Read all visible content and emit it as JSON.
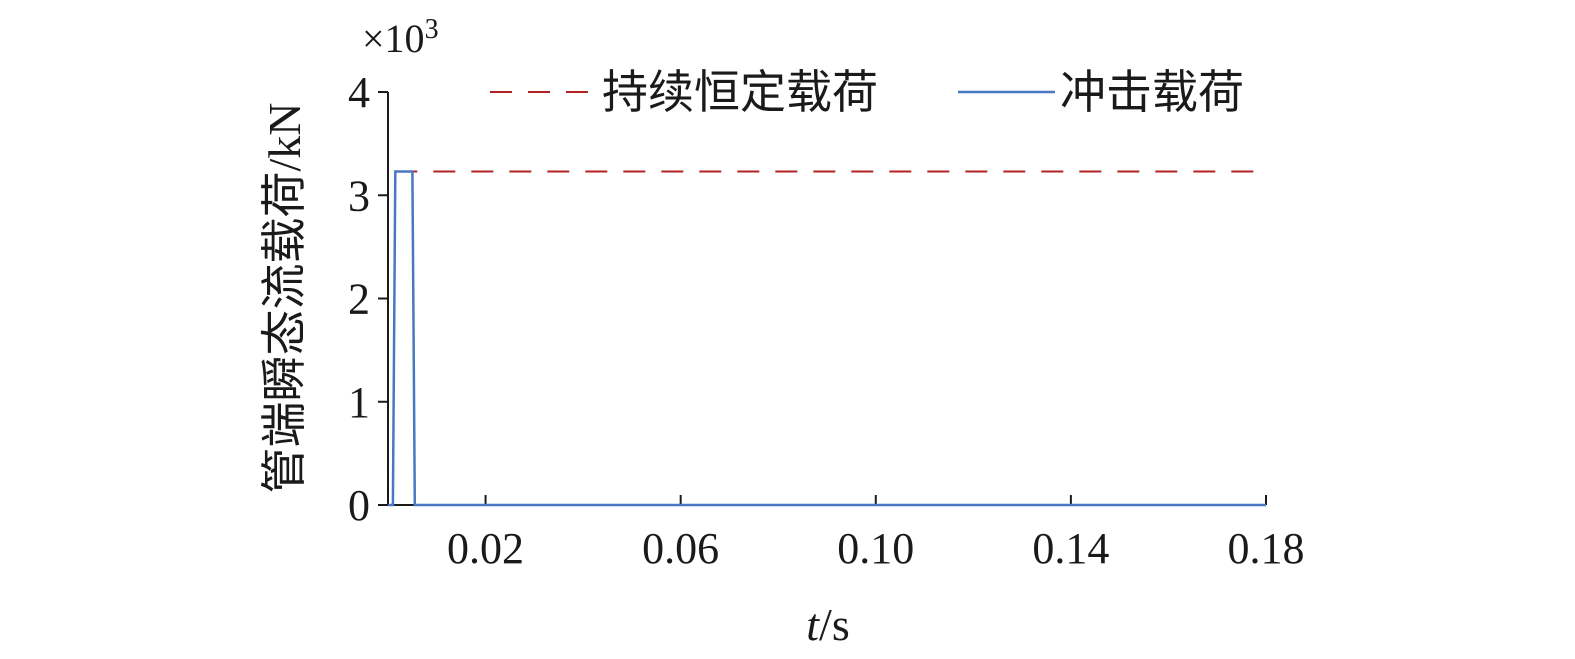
{
  "chart_data": {
    "type": "line",
    "xlabel_italic": "t",
    "xlabel_unit": "/s",
    "ylabel": "管端瞬态流载荷/kN",
    "y_multiplier_base": "×10",
    "y_multiplier_exp": "3",
    "xlim": [
      0,
      0.18
    ],
    "ylim": [
      0,
      4
    ],
    "x_ticks": [
      0.02,
      0.06,
      0.1,
      0.14,
      0.18
    ],
    "x_tick_labels": [
      "0.02",
      "0.06",
      "0.10",
      "0.14",
      "0.18"
    ],
    "y_ticks": [
      0,
      1,
      2,
      3,
      4
    ],
    "y_tick_labels": [
      "0",
      "1",
      "2",
      "3",
      "4"
    ],
    "legend_position": "top",
    "series": [
      {
        "name": "持续恒定载荷",
        "style": "dashed",
        "color": "#b22222",
        "x": [
          0.0015,
          0.18
        ],
        "y": [
          3.23,
          3.23
        ]
      },
      {
        "name": "冲击载荷",
        "style": "solid",
        "color": "#4a78c2",
        "x": [
          0,
          0.001,
          0.0015,
          0.005,
          0.0055,
          0.18
        ],
        "y": [
          0,
          0,
          3.23,
          3.23,
          0,
          0
        ]
      }
    ]
  }
}
